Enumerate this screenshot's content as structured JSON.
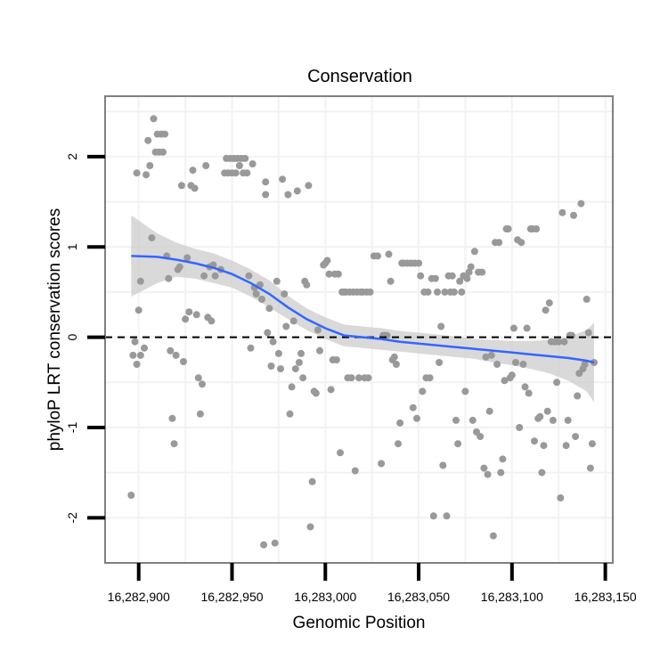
{
  "chart_data": {
    "type": "scatter",
    "title": "Conservation",
    "xlabel": "Genomic Position",
    "ylabel": "phyloP LRT conservation scores",
    "xlim": [
      16282882,
      16283154
    ],
    "ylim": [
      -2.5,
      2.67
    ],
    "x_ticks": [
      {
        "value": 16282900,
        "label": "16,282,900"
      },
      {
        "value": 16282950,
        "label": "16,282,950"
      },
      {
        "value": 16283000,
        "label": "16,283,000"
      },
      {
        "value": 16283050,
        "label": "16,283,050"
      },
      {
        "value": 16283100,
        "label": "16,283,100"
      },
      {
        "value": 16283150,
        "label": "16,283,150"
      }
    ],
    "y_ticks": [
      {
        "value": 2,
        "label": "2"
      },
      {
        "value": 1,
        "label": "1"
      },
      {
        "value": 0,
        "label": "0"
      },
      {
        "value": -1,
        "label": "-1"
      },
      {
        "value": -2,
        "label": "-2"
      }
    ],
    "reference_line": {
      "y": 0,
      "style": "dashed"
    },
    "points": [
      [
        16282896,
        -1.75
      ],
      [
        16282897,
        -0.2
      ],
      [
        16282898,
        -0.05
      ],
      [
        16282899,
        1.82
      ],
      [
        16282899,
        -0.3
      ],
      [
        16282900,
        0.3
      ],
      [
        16282901,
        0.62
      ],
      [
        16282901,
        -0.2
      ],
      [
        16282903,
        -0.12
      ],
      [
        16282904,
        1.8
      ],
      [
        16282905,
        2.18
      ],
      [
        16282906,
        1.9
      ],
      [
        16282907,
        1.1
      ],
      [
        16282908,
        2.42
      ],
      [
        16282909,
        2.05
      ],
      [
        16282910,
        2.25
      ],
      [
        16282911,
        2.05
      ],
      [
        16282912,
        2.25
      ],
      [
        16282913,
        2.05
      ],
      [
        16282914,
        2.25
      ],
      [
        16282915,
        0.9
      ],
      [
        16282916,
        0.65
      ],
      [
        16282917,
        -0.15
      ],
      [
        16282918,
        -0.9
      ],
      [
        16282919,
        -1.18
      ],
      [
        16282920,
        -0.2
      ],
      [
        16282921,
        0.75
      ],
      [
        16282922,
        0.78
      ],
      [
        16282923,
        1.68
      ],
      [
        16282924,
        -0.27
      ],
      [
        16282925,
        0.2
      ],
      [
        16282926,
        0.88
      ],
      [
        16282927,
        0.28
      ],
      [
        16282928,
        1.68
      ],
      [
        16282929,
        1.85
      ],
      [
        16282930,
        1.65
      ],
      [
        16282931,
        0.25
      ],
      [
        16282932,
        -0.45
      ],
      [
        16282933,
        -0.85
      ],
      [
        16282934,
        -0.52
      ],
      [
        16282935,
        0.68
      ],
      [
        16282936,
        1.9
      ],
      [
        16282937,
        0.22
      ],
      [
        16282938,
        0.78
      ],
      [
        16282939,
        0.18
      ],
      [
        16282940,
        0.8
      ],
      [
        16282941,
        0.68
      ],
      [
        16282944,
        0.75
      ],
      [
        16282946,
        1.82
      ],
      [
        16282947,
        1.98
      ],
      [
        16282948,
        1.82
      ],
      [
        16282949,
        1.98
      ],
      [
        16282950,
        1.82
      ],
      [
        16282951,
        1.98
      ],
      [
        16282952,
        1.82
      ],
      [
        16282953,
        1.98
      ],
      [
        16282954,
        1.9
      ],
      [
        16282955,
        1.98
      ],
      [
        16282956,
        1.82
      ],
      [
        16282957,
        1.98
      ],
      [
        16282958,
        1.82
      ],
      [
        16282959,
        0.68
      ],
      [
        16282960,
        -0.12
      ],
      [
        16282961,
        1.92
      ],
      [
        16282962,
        0.55
      ],
      [
        16282963,
        0.48
      ],
      [
        16282965,
        0.58
      ],
      [
        16282966,
        0.42
      ],
      [
        16282967,
        -2.3
      ],
      [
        16282968,
        1.72
      ],
      [
        16282968,
        1.58
      ],
      [
        16282969,
        0.05
      ],
      [
        16282970,
        0.32
      ],
      [
        16282971,
        -0.32
      ],
      [
        16282972,
        -0.05
      ],
      [
        16282973,
        -2.28
      ],
      [
        16282974,
        0.62
      ],
      [
        16282975,
        -0.18
      ],
      [
        16282976,
        -0.35
      ],
      [
        16282977,
        1.75
      ],
      [
        16282978,
        0.48
      ],
      [
        16282979,
        0.12
      ],
      [
        16282980,
        1.58
      ],
      [
        16282981,
        -0.85
      ],
      [
        16282982,
        -0.55
      ],
      [
        16282983,
        0.18
      ],
      [
        16282984,
        -0.35
      ],
      [
        16282985,
        1.62
      ],
      [
        16282986,
        -0.28
      ],
      [
        16282987,
        -0.18
      ],
      [
        16282988,
        -0.45
      ],
      [
        16282989,
        0.62
      ],
      [
        16282990,
        0.58
      ],
      [
        16282991,
        1.68
      ],
      [
        16282992,
        -2.1
      ],
      [
        16282993,
        -1.6
      ],
      [
        16282994,
        -0.6
      ],
      [
        16282995,
        -0.62
      ],
      [
        16282996,
        0.08
      ],
      [
        16282997,
        -0.15
      ],
      [
        16282999,
        0.8
      ],
      [
        16283000,
        0.82
      ],
      [
        16283001,
        0.85
      ],
      [
        16283002,
        0.7
      ],
      [
        16283003,
        -0.58
      ],
      [
        16283004,
        -0.25
      ],
      [
        16283005,
        0.7
      ],
      [
        16283006,
        -0.25
      ],
      [
        16283007,
        0.7
      ],
      [
        16283008,
        -1.28
      ],
      [
        16283009,
        0.5
      ],
      [
        16283010,
        0.5
      ],
      [
        16283011,
        0.5
      ],
      [
        16283012,
        -0.45
      ],
      [
        16283013,
        0.5
      ],
      [
        16283014,
        -0.45
      ],
      [
        16283015,
        0.5
      ],
      [
        16283016,
        -1.48
      ],
      [
        16283017,
        0.5
      ],
      [
        16283018,
        -0.45
      ],
      [
        16283019,
        0.5
      ],
      [
        16283020,
        0.5
      ],
      [
        16283021,
        -0.45
      ],
      [
        16283022,
        0.5
      ],
      [
        16283023,
        -0.45
      ],
      [
        16283024,
        0.5
      ],
      [
        16283026,
        0.9
      ],
      [
        16283028,
        0.9
      ],
      [
        16283030,
        -1.4
      ],
      [
        16283031,
        0.02
      ],
      [
        16283032,
        0.02
      ],
      [
        16283033,
        0.02
      ],
      [
        16283034,
        0.92
      ],
      [
        16283035,
        0.62
      ],
      [
        16283036,
        -0.25
      ],
      [
        16283037,
        -0.22
      ],
      [
        16283038,
        -0.3
      ],
      [
        16283039,
        -1.18
      ],
      [
        16283040,
        -0.95
      ],
      [
        16283041,
        0.82
      ],
      [
        16283042,
        0.82
      ],
      [
        16283044,
        0.82
      ],
      [
        16283046,
        0.82
      ],
      [
        16283047,
        -0.78
      ],
      [
        16283048,
        0.82
      ],
      [
        16283049,
        -0.9
      ],
      [
        16283050,
        0.82
      ],
      [
        16283051,
        0.68
      ],
      [
        16283052,
        -0.6
      ],
      [
        16283053,
        0.5
      ],
      [
        16283054,
        -0.45
      ],
      [
        16283055,
        0.5
      ],
      [
        16283056,
        -0.45
      ],
      [
        16283057,
        0.65
      ],
      [
        16283058,
        -1.98
      ],
      [
        16283059,
        0.65
      ],
      [
        16283060,
        0.5
      ],
      [
        16283061,
        -0.28
      ],
      [
        16283062,
        0.12
      ],
      [
        16283063,
        -1.42
      ],
      [
        16283064,
        0.5
      ],
      [
        16283065,
        -1.98
      ],
      [
        16283066,
        0.68
      ],
      [
        16283067,
        0.5
      ],
      [
        16283068,
        0.68
      ],
      [
        16283069,
        0.5
      ],
      [
        16283070,
        -0.92
      ],
      [
        16283071,
        -1.18
      ],
      [
        16283072,
        0.62
      ],
      [
        16283073,
        0.5
      ],
      [
        16283074,
        0.68
      ],
      [
        16283075,
        -0.6
      ],
      [
        16283076,
        0.65
      ],
      [
        16283077,
        0.72
      ],
      [
        16283078,
        0.78
      ],
      [
        16283079,
        -0.92
      ],
      [
        16283080,
        0.95
      ],
      [
        16283081,
        -1.05
      ],
      [
        16283082,
        0.72
      ],
      [
        16283083,
        -1.1
      ],
      [
        16283084,
        0.72
      ],
      [
        16283085,
        -1.45
      ],
      [
        16283086,
        -0.22
      ],
      [
        16283087,
        -1.52
      ],
      [
        16283088,
        -0.82
      ],
      [
        16283089,
        -0.2
      ],
      [
        16283090,
        -2.2
      ],
      [
        16283091,
        1.05
      ],
      [
        16283092,
        -0.3
      ],
      [
        16283093,
        1.05
      ],
      [
        16283094,
        -1.5
      ],
      [
        16283095,
        -1.35
      ],
      [
        16283096,
        -0.48
      ],
      [
        16283097,
        1.2
      ],
      [
        16283098,
        1.2
      ],
      [
        16283099,
        -0.45
      ],
      [
        16283100,
        -0.42
      ],
      [
        16283101,
        0.1
      ],
      [
        16283102,
        -0.28
      ],
      [
        16283103,
        1.08
      ],
      [
        16283104,
        -1.0
      ],
      [
        16283105,
        1.05
      ],
      [
        16283106,
        -0.3
      ],
      [
        16283107,
        -0.55
      ],
      [
        16283108,
        0.1
      ],
      [
        16283109,
        -0.62
      ],
      [
        16283110,
        1.2
      ],
      [
        16283111,
        1.2
      ],
      [
        16283112,
        -1.15
      ],
      [
        16283113,
        1.2
      ],
      [
        16283114,
        -0.9
      ],
      [
        16283115,
        -0.88
      ],
      [
        16283116,
        -1.5
      ],
      [
        16283117,
        -1.2
      ],
      [
        16283118,
        0.3
      ],
      [
        16283119,
        -0.82
      ],
      [
        16283120,
        0.38
      ],
      [
        16283121,
        -0.05
      ],
      [
        16283122,
        -0.92
      ],
      [
        16283123,
        -0.05
      ],
      [
        16283124,
        -0.5
      ],
      [
        16283125,
        -0.05
      ],
      [
        16283126,
        -1.78
      ],
      [
        16283127,
        1.38
      ],
      [
        16283128,
        -0.05
      ],
      [
        16283129,
        -1.2
      ],
      [
        16283130,
        -0.92
      ],
      [
        16283131,
        0.02
      ],
      [
        16283132,
        0.02
      ],
      [
        16283133,
        1.35
      ],
      [
        16283134,
        -1.1
      ],
      [
        16283135,
        -0.65
      ],
      [
        16283136,
        -0.4
      ],
      [
        16283137,
        1.48
      ],
      [
        16283138,
        -0.35
      ],
      [
        16283139,
        -0.3
      ],
      [
        16283140,
        0.42
      ],
      [
        16283141,
        0.05
      ],
      [
        16283142,
        -1.45
      ],
      [
        16283143,
        -1.18
      ],
      [
        16283144,
        -0.28
      ]
    ],
    "smooth_fit": {
      "name": "loess",
      "color": "#3366ff",
      "band_color": "#cccccc",
      "x": [
        16282896,
        16282910,
        16282920,
        16282930,
        16282940,
        16282950,
        16282960,
        16282970,
        16282980,
        16282990,
        16283000,
        16283010,
        16283020,
        16283030,
        16283040,
        16283050,
        16283060,
        16283070,
        16283080,
        16283090,
        16283100,
        16283110,
        16283120,
        16283130,
        16283140,
        16283144
      ],
      "y": [
        0.9,
        0.89,
        0.86,
        0.82,
        0.77,
        0.7,
        0.6,
        0.48,
        0.33,
        0.2,
        0.1,
        0.02,
        0.0,
        -0.02,
        -0.05,
        -0.07,
        -0.09,
        -0.11,
        -0.13,
        -0.15,
        -0.17,
        -0.19,
        -0.21,
        -0.23,
        -0.26,
        -0.28
      ],
      "lower": [
        0.45,
        0.6,
        0.67,
        0.65,
        0.6,
        0.55,
        0.45,
        0.33,
        0.2,
        0.08,
        -0.02,
        -0.1,
        -0.12,
        -0.14,
        -0.16,
        -0.18,
        -0.2,
        -0.22,
        -0.24,
        -0.28,
        -0.31,
        -0.35,
        -0.4,
        -0.48,
        -0.6,
        -0.72
      ],
      "upper": [
        1.35,
        1.15,
        1.05,
        0.98,
        0.93,
        0.85,
        0.75,
        0.63,
        0.46,
        0.32,
        0.22,
        0.14,
        0.12,
        0.1,
        0.07,
        0.05,
        0.03,
        0.01,
        -0.02,
        -0.03,
        -0.04,
        -0.04,
        -0.03,
        0.0,
        0.08,
        0.16
      ]
    },
    "colors": {
      "point": "#999999",
      "fit_line": "#3366ff",
      "band": "#cccccc",
      "panel_border": "#808080",
      "grid": "#f2f2f2",
      "axis_ticks": "#000000"
    }
  }
}
